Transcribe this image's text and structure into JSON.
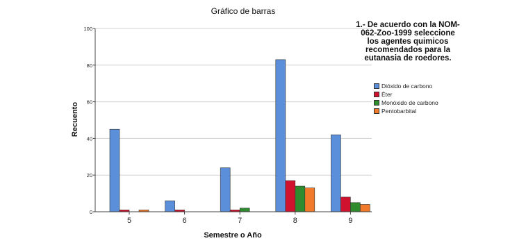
{
  "chart_data": {
    "type": "bar",
    "title": "Gráfico de barras",
    "xlabel": "Semestre o Año",
    "ylabel": "Recuento",
    "categories": [
      "5",
      "6",
      "7",
      "8",
      "9"
    ],
    "ylim": [
      0,
      100
    ],
    "yticks": [
      "0",
      "20",
      "40",
      "60",
      "80",
      "100"
    ],
    "grid": true,
    "legend_title": "1.- De acuerdo con la NOM-062-Zoo-1999 seleccione los agentes quimicos recomendados para la eutanasia de roedores.",
    "legend_position": "right",
    "series": [
      {
        "name": "Dióxido de carbono",
        "color": "#5b8fd9",
        "values": [
          45,
          6,
          24,
          83,
          42
        ]
      },
      {
        "name": "Éter",
        "color": "#d1122e",
        "values": [
          1,
          1,
          1,
          17,
          8
        ]
      },
      {
        "name": "Monóxido de carbono",
        "color": "#2e8b2e",
        "values": [
          0,
          0,
          2,
          14,
          5
        ]
      },
      {
        "name": "Pentobarbital",
        "color": "#f07a2a",
        "values": [
          1,
          0,
          0,
          13,
          4
        ]
      }
    ]
  }
}
